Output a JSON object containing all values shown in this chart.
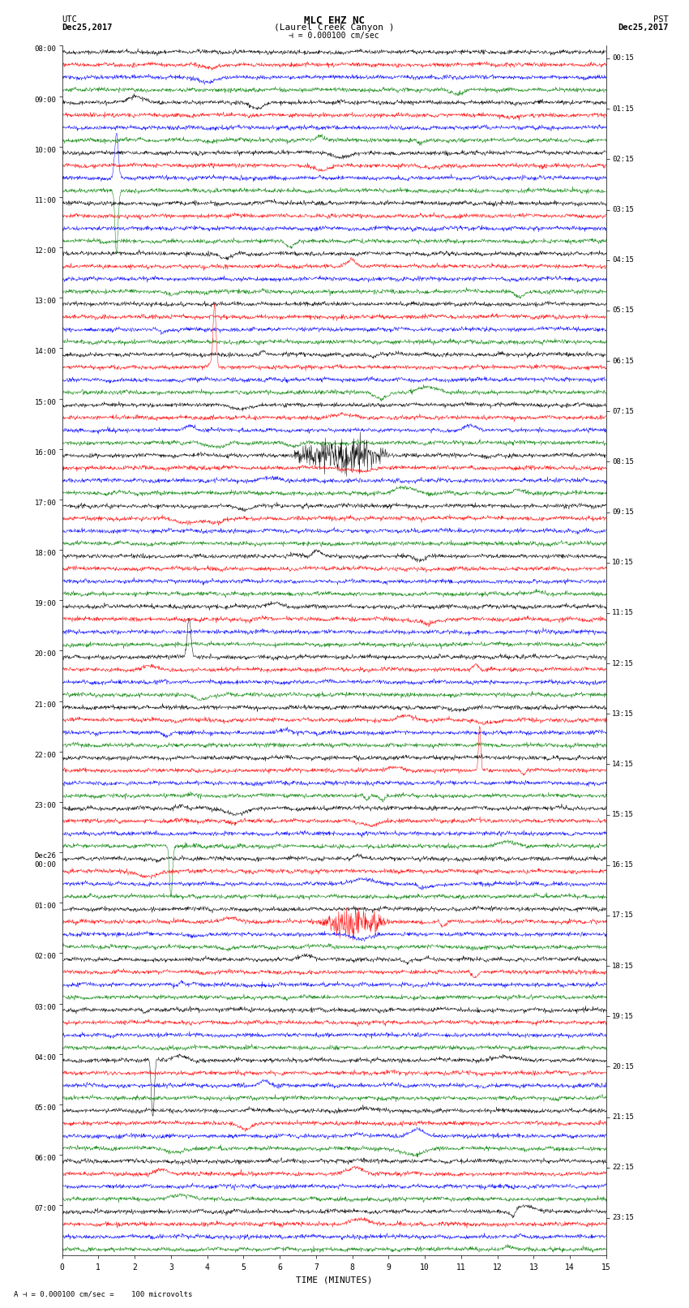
{
  "title_line1": "MLC EHZ NC",
  "title_line2": "(Laurel Creek Canyon )",
  "scale_text": "= 0.000100 cm/sec",
  "bottom_text": "= 0.000100 cm/sec =    100 microvolts",
  "left_header": "UTC",
  "left_date": "Dec25,2017",
  "right_header": "PST",
  "right_date": "Dec25,2017",
  "xlabel": "TIME (MINUTES)",
  "trace_colors": [
    "black",
    "red",
    "blue",
    "green"
  ],
  "num_hours": 24,
  "traces_per_hour": 4,
  "minutes": 15,
  "samples_per_minute": 100,
  "utc_labels": [
    "08:00",
    "09:00",
    "10:00",
    "11:00",
    "12:00",
    "13:00",
    "14:00",
    "15:00",
    "16:00",
    "17:00",
    "18:00",
    "19:00",
    "20:00",
    "21:00",
    "22:00",
    "23:00",
    "Dec26\n00:00",
    "01:00",
    "02:00",
    "03:00",
    "04:00",
    "05:00",
    "06:00",
    "07:00"
  ],
  "pst_labels": [
    "00:15",
    "01:15",
    "02:15",
    "03:15",
    "04:15",
    "05:15",
    "06:15",
    "07:15",
    "08:15",
    "09:15",
    "10:15",
    "11:15",
    "12:15",
    "13:15",
    "14:15",
    "15:15",
    "16:15",
    "17:15",
    "18:15",
    "19:15",
    "20:15",
    "21:15",
    "22:15",
    "23:15"
  ],
  "bg_color": "#ffffff",
  "trace_amplitude": 0.28,
  "linewidth": 0.35
}
